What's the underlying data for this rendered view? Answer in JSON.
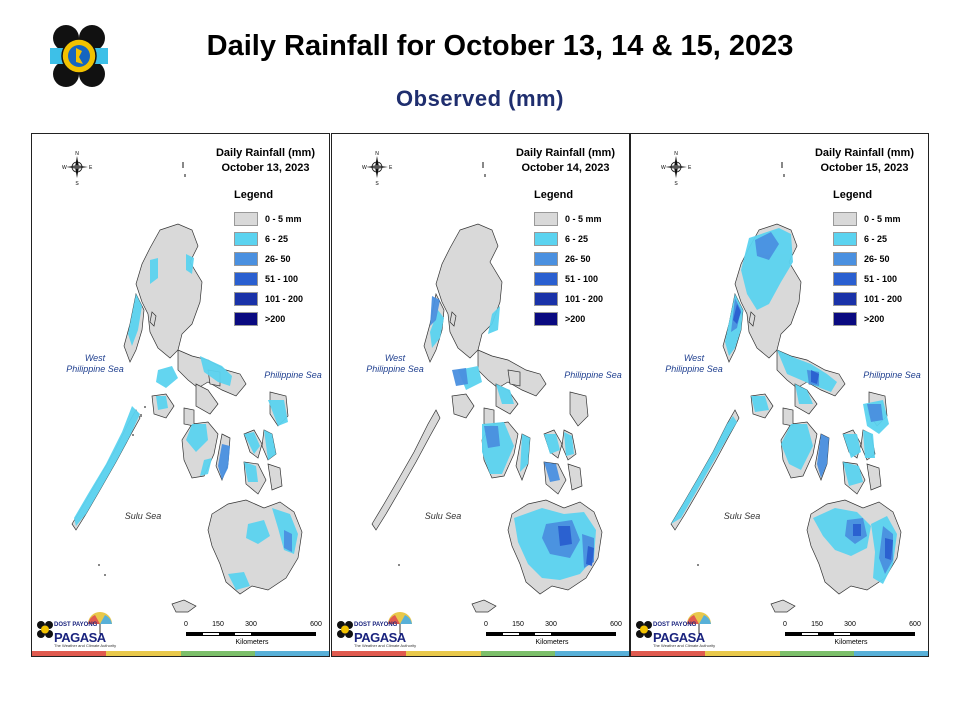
{
  "header": {
    "title": "Daily Rainfall for October 13, 14 & 15, 2023",
    "subtitle": "Observed (mm)",
    "logo_icon": "pagasa-seal-icon"
  },
  "legend": {
    "title": "Legend",
    "classes": [
      {
        "label": "0 - 5 mm",
        "color": "#d9d9d9"
      },
      {
        "label": "6 - 25",
        "color": "#5bd3f0"
      },
      {
        "label": "26- 50",
        "color": "#4a90e0"
      },
      {
        "label": "51 - 100",
        "color": "#2a5fd0"
      },
      {
        "label": "101 - 200",
        "color": "#1a32a8"
      },
      {
        "label": ">200",
        "color": "#0a0a80"
      }
    ]
  },
  "labels": {
    "west_sea": "West\nPhilippine Sea",
    "east_sea": "Philippine Sea",
    "south_sea": "Sulu Sea",
    "compass": {
      "n": "N",
      "s": "S",
      "e": "E",
      "w": "W"
    }
  },
  "scale_bar": {
    "ticks": [
      "0",
      "150",
      "300",
      "600"
    ],
    "unit": "Kilometers"
  },
  "branding": {
    "agency": "PAGASA",
    "small": "DOST PAYONG",
    "tagline": "The Weather and Climate Authority"
  },
  "panels": [
    {
      "heading": "Daily Rainfall (mm)",
      "date": "October 13, 2023"
    },
    {
      "heading": "Daily Rainfall (mm)",
      "date": "October 14, 2023"
    },
    {
      "heading": "Daily Rainfall (mm)",
      "date": "October 15, 2023"
    }
  ],
  "colors": {
    "land_base": "#d9d9d9",
    "strip": [
      "#e05a4f",
      "#e8c84a",
      "#7cbf6a",
      "#58b0d8"
    ]
  }
}
